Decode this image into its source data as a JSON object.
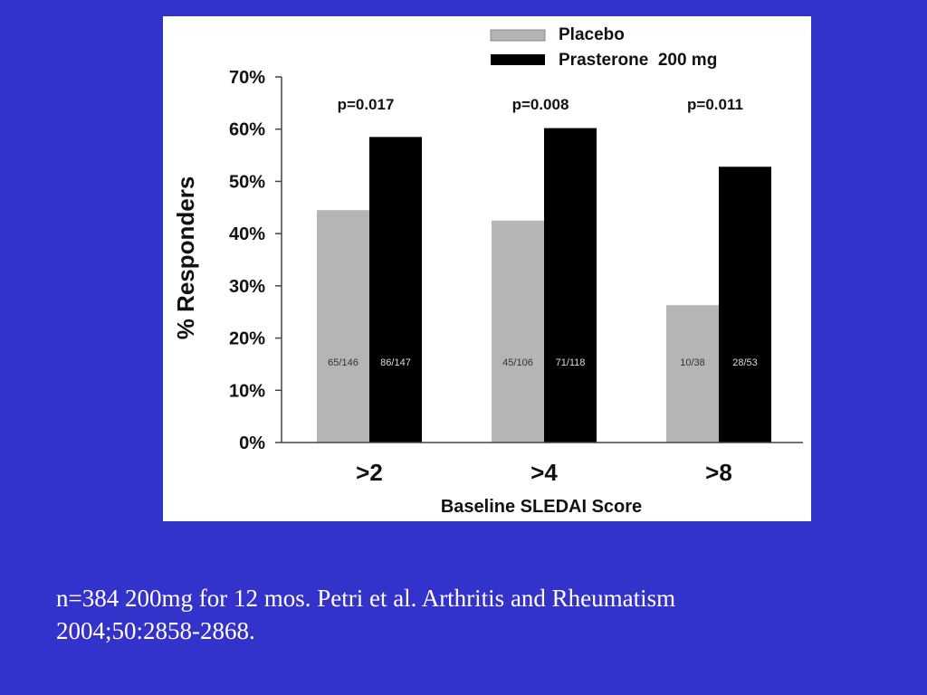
{
  "caption": {
    "line1": "n=384 200mg for 12 mos. Petri et al. Arthritis and Rheumatism",
    "line2": "2004;50:2858-2868."
  },
  "chart_data": {
    "type": "bar",
    "title": "",
    "xlabel": "Baseline SLEDAI Score",
    "ylabel": "% Responders",
    "ylim": [
      0,
      70
    ],
    "yticks": [
      "0%",
      "10%",
      "20%",
      "30%",
      "40%",
      "50%",
      "60%",
      "70%"
    ],
    "categories": [
      ">2",
      ">4",
      ">8"
    ],
    "series": [
      {
        "name": "Placebo",
        "color": "#b5b5b5",
        "values": [
          44.5,
          42.5,
          26.3
        ],
        "labels": [
          "65/146",
          "45/106",
          "10/38"
        ]
      },
      {
        "name": "Prasterone  200 mg",
        "color": "#000000",
        "values": [
          58.5,
          60.2,
          52.8
        ],
        "labels": [
          "86/147",
          "71/118",
          "28/53"
        ]
      }
    ],
    "annotations": [
      "p=0.017",
      "p=0.008",
      "p=0.011"
    ],
    "legend": "top-right",
    "grid": false
  }
}
